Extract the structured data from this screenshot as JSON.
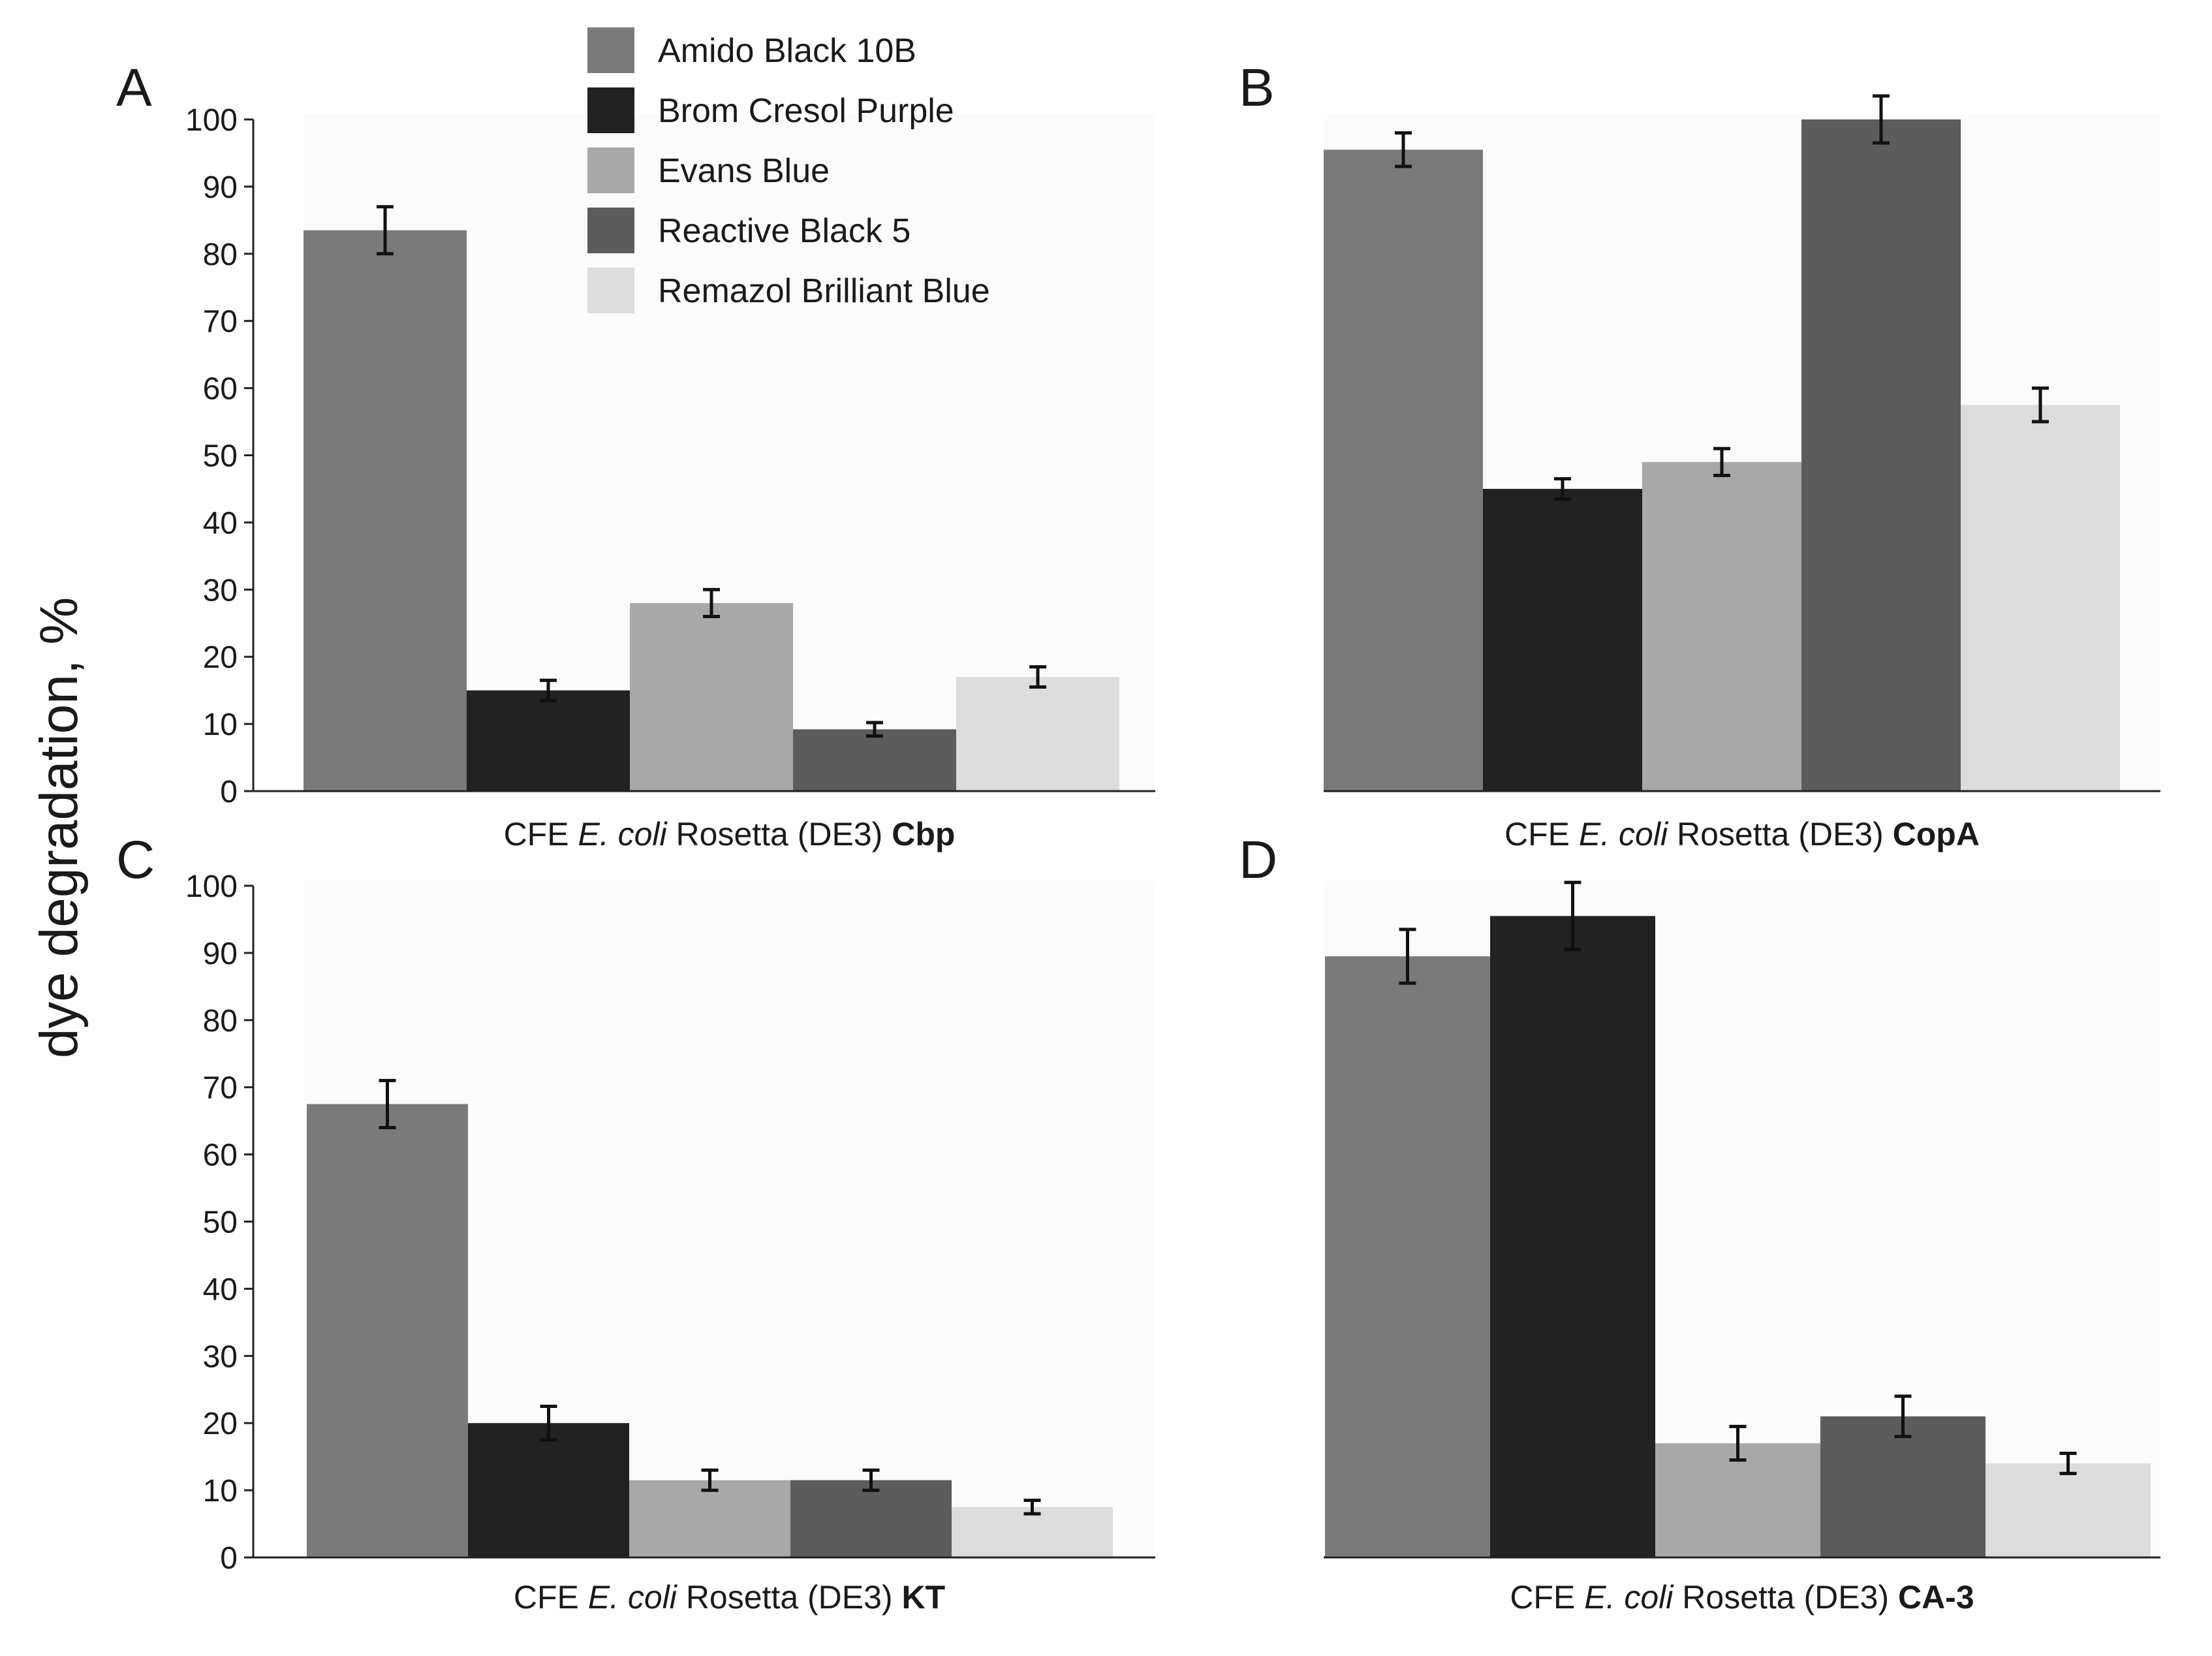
{
  "figure": {
    "ylabel": "dye degradation, %",
    "ylim": [
      0,
      100
    ],
    "yticks": [
      0,
      10,
      20,
      30,
      40,
      50,
      60,
      70,
      80,
      90,
      100
    ]
  },
  "legend": {
    "position": "top-center",
    "items": [
      {
        "label": "Amido Black 10B",
        "color": "#7a7a7a"
      },
      {
        "label": "Brom Cresol Purple",
        "color": "#222222"
      },
      {
        "label": "Evans Blue",
        "color": "#a8a8a8"
      },
      {
        "label": "Reactive Black 5",
        "color": "#5c5c5c"
      },
      {
        "label": "Remazol Brilliant Blue",
        "color": "#dcdcdc"
      }
    ]
  },
  "chart_data": [
    {
      "type": "bar",
      "panel": "A",
      "xlabel": {
        "prefix": "CFE ",
        "species": "E. coli",
        "middle": " Rosetta (DE3) ",
        "strain": "Cbp"
      },
      "ylim": [
        0,
        100
      ],
      "series": [
        {
          "name": "Amido Black 10B",
          "values": [
            83.5
          ],
          "error": [
            3.5
          ]
        },
        {
          "name": "Brom Cresol Purple",
          "values": [
            15
          ],
          "error": [
            1.5
          ]
        },
        {
          "name": "Evans Blue",
          "values": [
            28
          ],
          "error": [
            2
          ]
        },
        {
          "name": "Reactive Black 5",
          "values": [
            9.2
          ],
          "error": [
            1
          ]
        },
        {
          "name": "Remazol Brilliant Blue",
          "values": [
            17
          ],
          "error": [
            1.5
          ]
        }
      ]
    },
    {
      "type": "bar",
      "panel": "B",
      "xlabel": {
        "prefix": "CFE ",
        "species": "E. coli",
        "middle": " Rosetta (DE3) ",
        "strain": "CopA"
      },
      "ylim": [
        0,
        100
      ],
      "series": [
        {
          "name": "Amido Black 10B",
          "values": [
            95.5
          ],
          "error": [
            2.5
          ]
        },
        {
          "name": "Brom Cresol Purple",
          "values": [
            45
          ],
          "error": [
            1.5
          ]
        },
        {
          "name": "Evans Blue",
          "values": [
            49
          ],
          "error": [
            2
          ]
        },
        {
          "name": "Reactive Black 5",
          "values": [
            100
          ],
          "error": [
            3.5
          ]
        },
        {
          "name": "Remazol Brilliant Blue",
          "values": [
            57.5
          ],
          "error": [
            2.5
          ]
        }
      ]
    },
    {
      "type": "bar",
      "panel": "C",
      "xlabel": {
        "prefix": "CFE ",
        "species": "E. coli",
        "middle": " Rosetta (DE3) ",
        "strain": "KT"
      },
      "ylim": [
        0,
        100
      ],
      "series": [
        {
          "name": "Amido Black 10B",
          "values": [
            67.5
          ],
          "error": [
            3.5
          ]
        },
        {
          "name": "Brom Cresol Purple",
          "values": [
            20
          ],
          "error": [
            2.5
          ]
        },
        {
          "name": "Evans Blue",
          "values": [
            11.5
          ],
          "error": [
            1.5
          ]
        },
        {
          "name": "Reactive Black 5",
          "values": [
            11.5
          ],
          "error": [
            1.5
          ]
        },
        {
          "name": "Remazol Brilliant Blue",
          "values": [
            7.5
          ],
          "error": [
            1
          ]
        }
      ]
    },
    {
      "type": "bar",
      "panel": "D",
      "xlabel": {
        "prefix": "CFE ",
        "species": "E. coli",
        "middle": " Rosetta (DE3) ",
        "strain": "CA-3"
      },
      "ylim": [
        0,
        100
      ],
      "series": [
        {
          "name": "Amido Black 10B",
          "values": [
            89.5
          ],
          "error": [
            4
          ]
        },
        {
          "name": "Brom Cresol Purple",
          "values": [
            95.5
          ],
          "error": [
            5
          ]
        },
        {
          "name": "Evans Blue",
          "values": [
            17
          ],
          "error": [
            2.5
          ]
        },
        {
          "name": "Reactive Black 5",
          "values": [
            21
          ],
          "error": [
            3
          ]
        },
        {
          "name": "Remazol Brilliant Blue",
          "values": [
            14
          ],
          "error": [
            1.5
          ]
        }
      ]
    }
  ]
}
